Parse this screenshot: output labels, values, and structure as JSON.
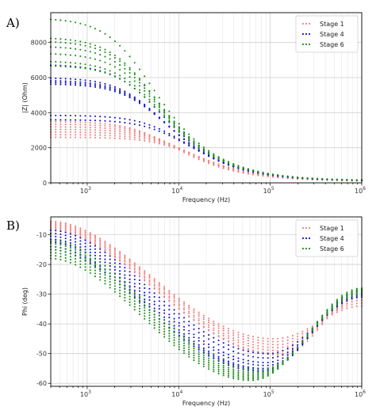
{
  "chart_data": [
    {
      "panel": "A)",
      "type": "scatter",
      "xscale": "log",
      "xlim": [
        400,
        1000000
      ],
      "ylim": [
        0,
        9700
      ],
      "xlabel": "Frequency (Hz)",
      "ylabel": "|Z| (Ohm)",
      "x_ticks": [
        {
          "v": 1000,
          "label": "10",
          "sup": "3"
        },
        {
          "v": 10000,
          "label": "10",
          "sup": "4"
        },
        {
          "v": 100000,
          "label": "10",
          "sup": "5"
        },
        {
          "v": 1000000,
          "label": "10",
          "sup": "6"
        }
      ],
      "y_ticks": [
        0,
        2000,
        4000,
        6000,
        8000
      ],
      "legend": {
        "placement": "top-right",
        "entries": [
          "Stage 1",
          "Stage 4",
          "Stage 6"
        ]
      },
      "grid": true,
      "series": [
        {
          "name": "Stage 1",
          "color": "#f08080",
          "z0": [
            3500,
            3350,
            3200,
            3050,
            2900,
            2750,
            2600
          ],
          "fc": [
            6000,
            6800,
            7500,
            8300,
            9000,
            9800,
            10500
          ]
        },
        {
          "name": "Stage 4",
          "color": "#1515c8",
          "z0": [
            6750,
            6000,
            5850,
            5750,
            5650,
            3850,
            3600
          ],
          "fc": [
            4400,
            4700,
            4900,
            5000,
            5100,
            8200,
            8800
          ]
        },
        {
          "name": "Stage 6",
          "color": "#1c8c1c",
          "z0": [
            9400,
            8300,
            8100,
            7800,
            7400,
            6950,
            6700
          ],
          "fc": [
            3500,
            3800,
            3900,
            4000,
            4200,
            4400,
            4500
          ]
        }
      ]
    },
    {
      "panel": "B)",
      "type": "scatter",
      "xscale": "log",
      "xlim": [
        400,
        1000000
      ],
      "ylim": [
        -61,
        -4
      ],
      "xlabel": "Frequency (Hz)",
      "ylabel": "Phi (deg)",
      "x_ticks": [
        {
          "v": 1000,
          "label": "10",
          "sup": "3"
        },
        {
          "v": 10000,
          "label": "10",
          "sup": "4"
        },
        {
          "v": 100000,
          "label": "10",
          "sup": "5"
        },
        {
          "v": 1000000,
          "label": "10",
          "sup": "6"
        }
      ],
      "y_ticks": [
        -10,
        -20,
        -30,
        -40,
        -50,
        -60
      ],
      "legend": {
        "placement": "top-right",
        "entries": [
          "Stage 1",
          "Stage 4",
          "Stage 6"
        ]
      },
      "grid": true,
      "series": [
        {
          "name": "Stage 1",
          "color": "#f08080",
          "start": [
            -5.5,
            -6,
            -6.5,
            -7,
            -7.5,
            -8,
            -8.5
          ],
          "min": [
            -45,
            -46,
            -47,
            -48,
            -49,
            -50,
            -50.5
          ],
          "fmin": [
            110000,
            115000,
            120000,
            120000,
            125000,
            125000,
            130000
          ],
          "end": [
            -34,
            -33,
            -32,
            -32,
            -31,
            -30,
            -30
          ]
        },
        {
          "name": "Stage 4",
          "color": "#1515c8",
          "start": [
            -8.5,
            -9.5,
            -10.5,
            -11.5,
            -12.5,
            -14,
            -15
          ],
          "min": [
            -50,
            -51.5,
            -53,
            -54,
            -55,
            -55.5,
            -56
          ],
          "fmin": [
            95000,
            95000,
            90000,
            90000,
            85000,
            85000,
            80000
          ],
          "end": [
            -31,
            -30.5,
            -30,
            -29.5,
            -29,
            -29,
            -28.5
          ]
        },
        {
          "name": "Stage 6",
          "color": "#1c8c1c",
          "start": [
            -12,
            -13,
            -14,
            -15,
            -16,
            -17,
            -18
          ],
          "min": [
            -55.5,
            -56.5,
            -57,
            -57.5,
            -58,
            -58.5,
            -59
          ],
          "fmin": [
            75000,
            72000,
            70000,
            68000,
            66000,
            64000,
            62000
          ],
          "end": [
            -30,
            -29.5,
            -29,
            -29,
            -28.5,
            -28.5,
            -28
          ]
        }
      ]
    }
  ]
}
